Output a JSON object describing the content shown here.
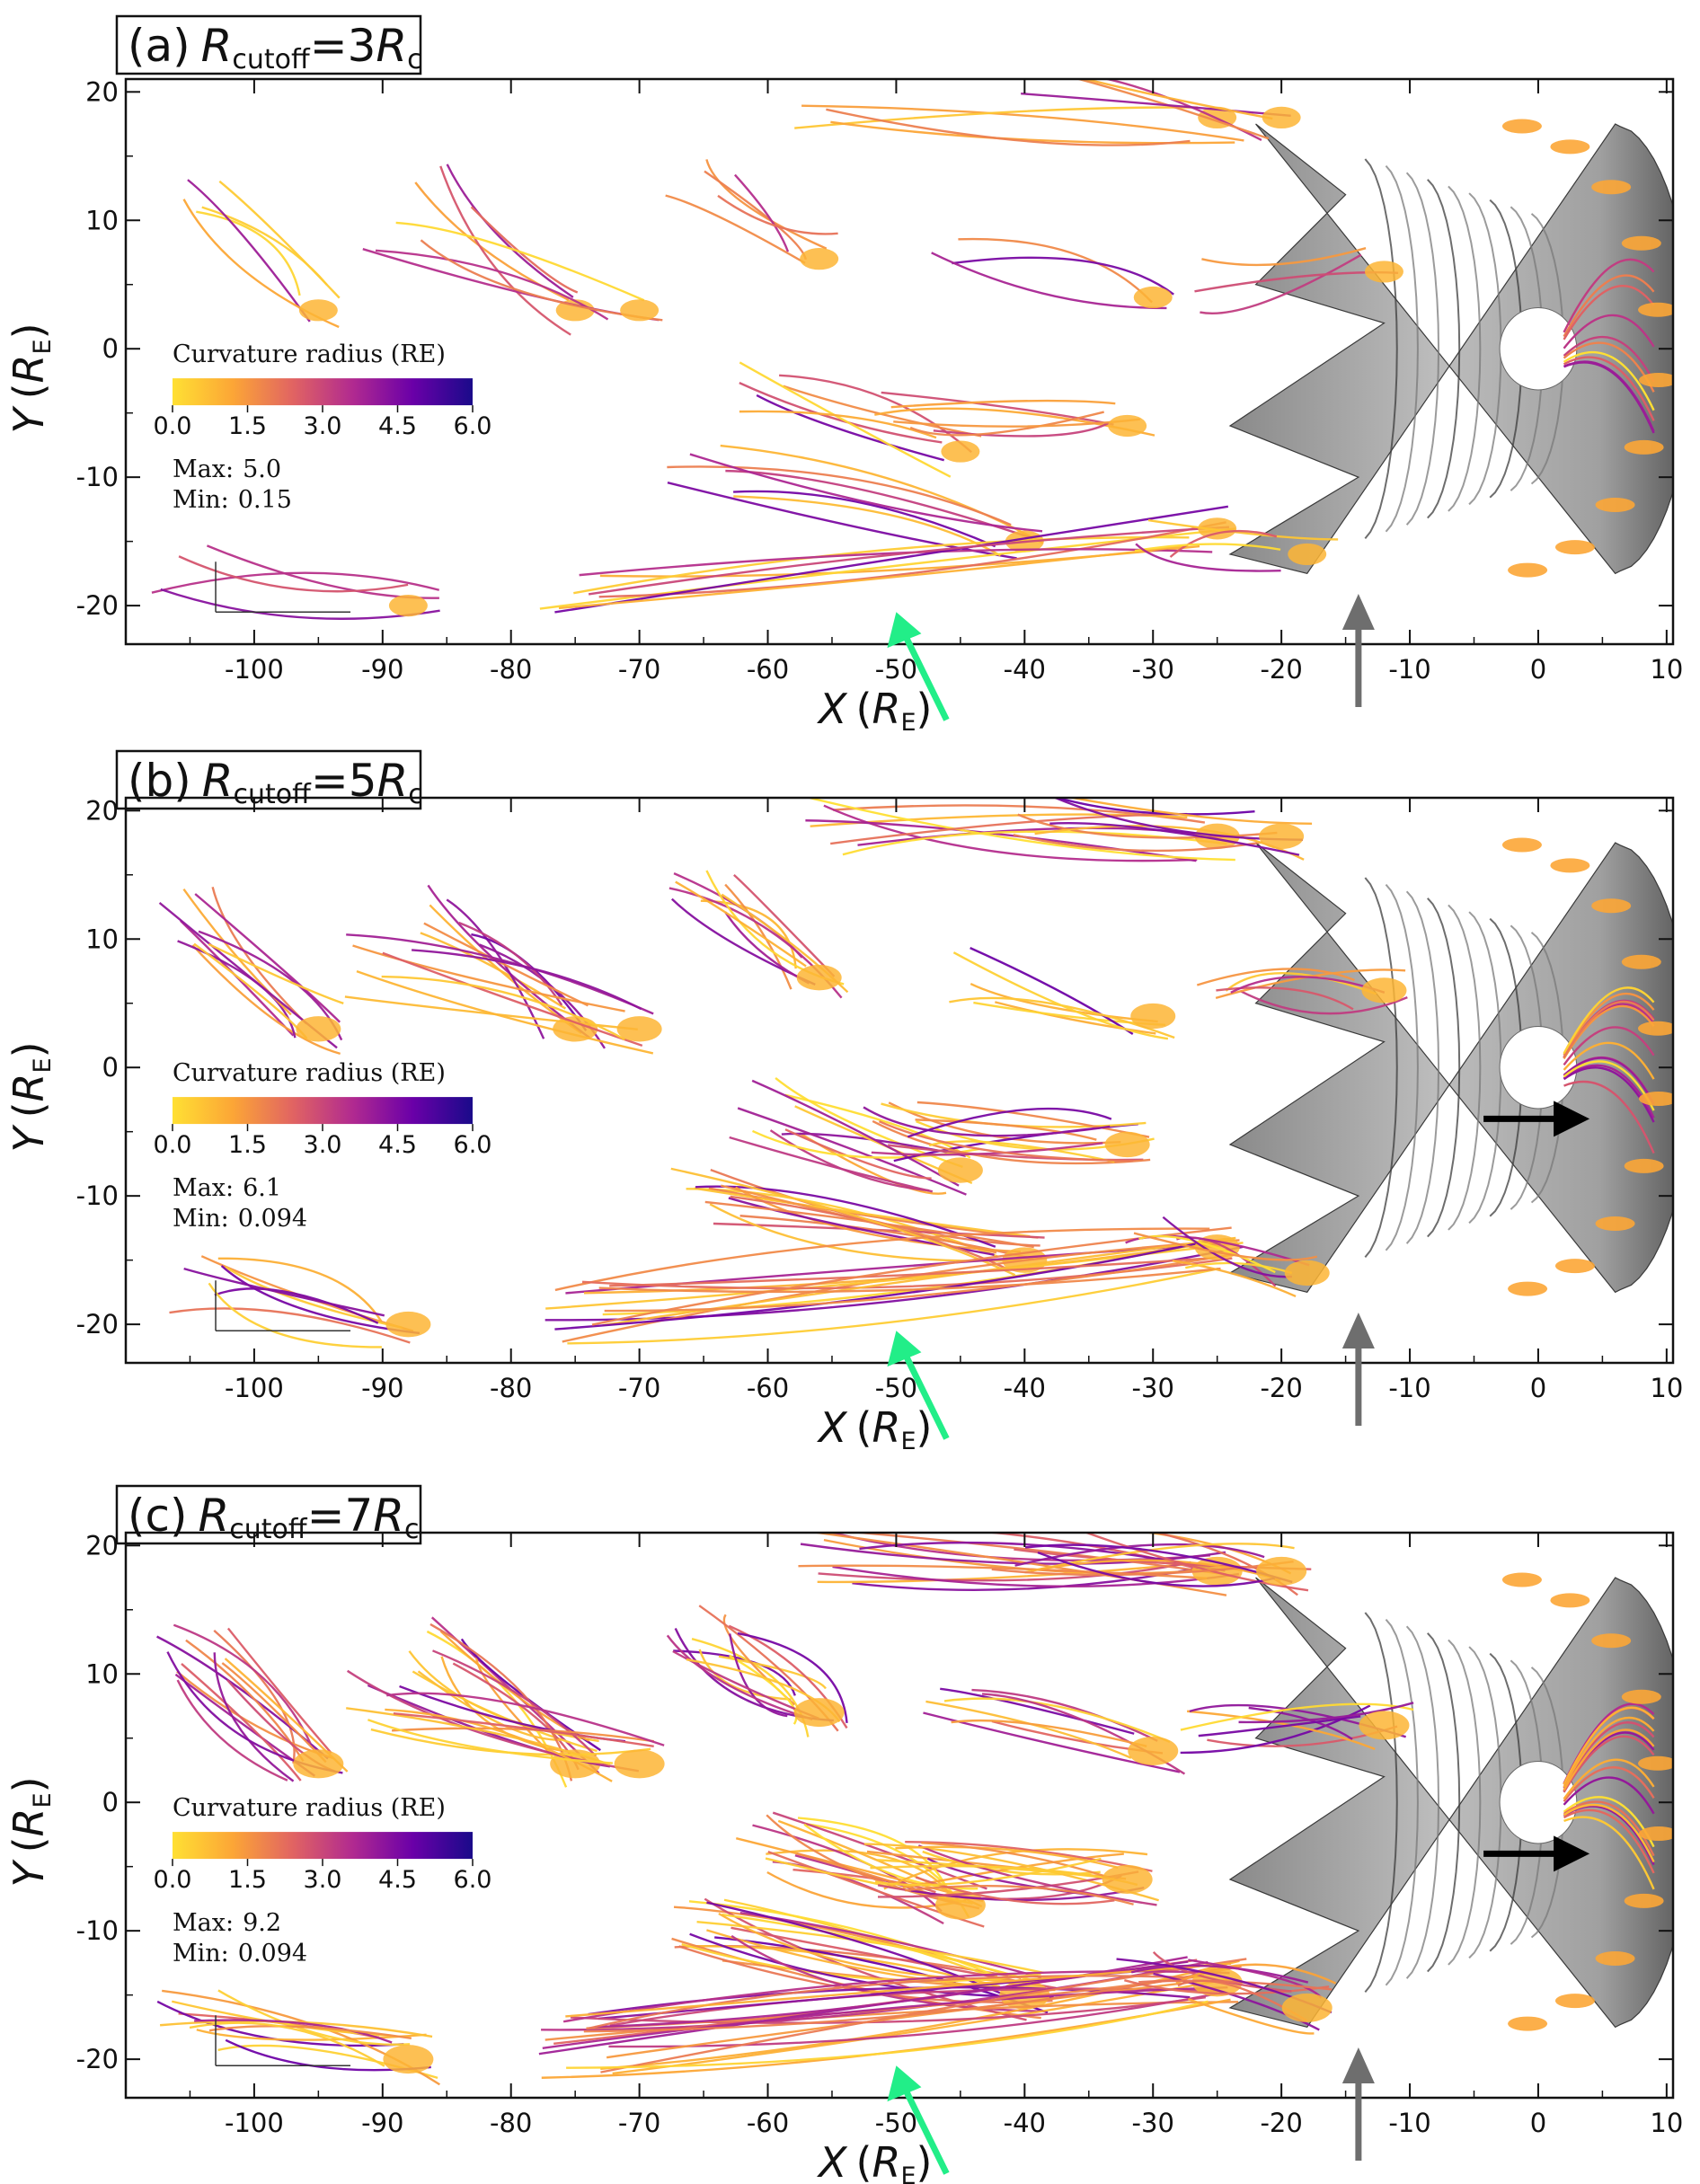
{
  "figure": {
    "colors": {
      "frame": "#111111",
      "earth_fill": "#ffffff",
      "magnetosphere_light": "#c8c8c8",
      "magnetosphere_dark": "#4a4a4a",
      "arrow_green": "#22ee88",
      "arrow_gray": "#6e6e6e",
      "arrow_black": "#000000"
    },
    "colormap_name": "plasma (reversed)",
    "colormap_stops": [
      "#ffe033",
      "#fca636",
      "#e16462",
      "#b12a90",
      "#6a00a8",
      "#1a0a8a"
    ],
    "shared_axes": {
      "x_label_main": "X",
      "x_label_unit": "R",
      "x_label_unit_sub": "E",
      "y_label_main": "Y",
      "y_label_unit": "R",
      "y_label_unit_sub": "E"
    },
    "colorbar": {
      "title": "Curvature radius (RE)",
      "ticks": [
        "0.0",
        "1.5",
        "3.0",
        "4.5",
        "6.0"
      ],
      "range": [
        0.0,
        6.0
      ]
    }
  },
  "chart_data": [
    {
      "type": "scatter",
      "panel_prefix": "(a)",
      "label_italic": "R",
      "label_sub": "cutoff",
      "label_eq": "=3",
      "label_tail": "R",
      "label_tail_sub": "c",
      "xlim": [
        -110,
        10.5
      ],
      "ylim": [
        -23,
        21
      ],
      "x_ticks": [
        -100,
        -90,
        -80,
        -70,
        -60,
        -50,
        -40,
        -30,
        -20,
        -10,
        0,
        10
      ],
      "y_ticks": [
        20,
        10,
        0,
        -10,
        -20
      ],
      "stats": {
        "max_label": "Max:",
        "max_value": "5.0",
        "min_label": "Min:",
        "min_value": "0.15"
      },
      "arrows": {
        "green_x": -50,
        "green_y": -20.5,
        "gray_x": -14,
        "gray_y": -19.5,
        "black": false
      },
      "density": 0.35
    },
    {
      "type": "scatter",
      "panel_prefix": "(b)",
      "label_italic": "R",
      "label_sub": "cutoff",
      "label_eq": "=5",
      "label_tail": "R",
      "label_tail_sub": "c",
      "xlim": [
        -110,
        10.5
      ],
      "ylim": [
        -23,
        21
      ],
      "x_ticks": [
        -100,
        -90,
        -80,
        -70,
        -60,
        -50,
        -40,
        -30,
        -20,
        -10,
        0,
        10
      ],
      "y_ticks": [
        20,
        10,
        0,
        -10,
        -20
      ],
      "stats": {
        "max_label": "Max:",
        "max_value": "6.1",
        "min_label": "Min:",
        "min_value": "0.094"
      },
      "arrows": {
        "green_x": -50,
        "green_y": -20.5,
        "gray_x": -14,
        "gray_y": -19.5,
        "black": true,
        "black_x": 4,
        "black_y": -4
      },
      "density": 0.7
    },
    {
      "type": "scatter",
      "panel_prefix": "(c)",
      "label_italic": "R",
      "label_sub": "cutoff",
      "label_eq": "=7",
      "label_tail": "R",
      "label_tail_sub": "c",
      "xlim": [
        -110,
        10.5
      ],
      "ylim": [
        -23,
        21
      ],
      "x_ticks": [
        -100,
        -90,
        -80,
        -70,
        -60,
        -50,
        -40,
        -30,
        -20,
        -10,
        0,
        10
      ],
      "y_ticks": [
        20,
        10,
        0,
        -10,
        -20
      ],
      "stats": {
        "max_label": "Max:",
        "max_value": "9.2",
        "min_label": "Min:",
        "min_value": "0.094"
      },
      "arrows": {
        "green_x": -50,
        "green_y": -20.5,
        "gray_x": -14,
        "gray_y": -19.5,
        "black": true,
        "black_x": 4,
        "black_y": -4
      },
      "density": 1.0
    }
  ]
}
